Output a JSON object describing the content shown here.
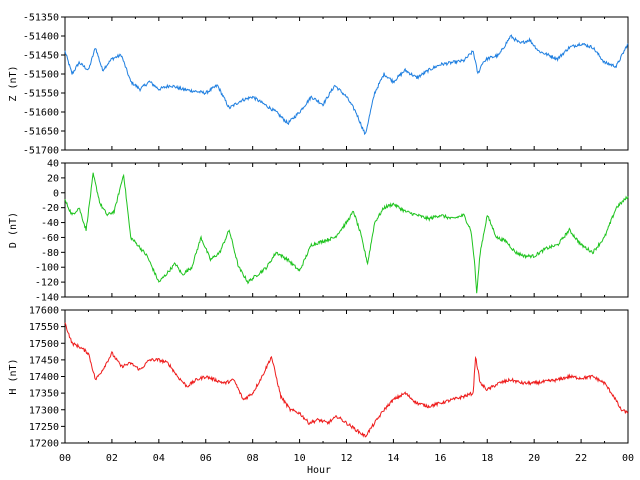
{
  "chart_data": [
    {
      "type": "line",
      "id": "z",
      "ylabel": "Z (nT)",
      "ylim": [
        -51700,
        -51350
      ],
      "yticks": [
        -51700,
        -51650,
        -51600,
        -51550,
        -51500,
        -51450,
        -51400,
        -51350
      ],
      "color": "#1f7fe0",
      "series": [
        {
          "x": [
            0,
            0.3,
            0.6,
            1.0,
            1.3,
            1.6,
            2.0,
            2.4,
            2.8,
            3.2,
            3.6,
            4.0,
            4.5,
            5.0,
            5.5,
            6.0,
            6.5,
            7.0,
            7.5,
            8.0,
            8.5,
            9.0,
            9.5,
            10.0,
            10.5,
            11.0,
            11.5,
            12.0,
            12.4,
            12.8,
            13.2,
            13.6,
            14.0,
            14.5,
            15.0,
            15.5,
            16.0,
            16.5,
            17.0,
            17.4,
            17.6,
            17.8,
            18.0,
            18.5,
            19.0,
            19.4,
            19.8,
            20.2,
            20.6,
            21.0,
            21.5,
            22.0,
            22.5,
            23.0,
            23.5,
            24.0
          ],
          "y": [
            -51440,
            -51500,
            -51470,
            -51490,
            -51430,
            -51490,
            -51460,
            -51450,
            -51520,
            -51540,
            -51520,
            -51540,
            -51530,
            -51540,
            -51545,
            -51550,
            -51530,
            -51590,
            -51570,
            -51560,
            -51580,
            -51600,
            -51630,
            -51600,
            -51560,
            -51580,
            -51530,
            -51560,
            -51600,
            -51660,
            -51550,
            -51500,
            -51520,
            -51490,
            -51510,
            -51490,
            -51475,
            -51470,
            -51465,
            -51440,
            -51500,
            -51470,
            -51460,
            -51450,
            -51400,
            -51420,
            -51410,
            -51440,
            -51450,
            -51460,
            -51430,
            -51420,
            -51430,
            -51470,
            -51480,
            -51420
          ]
        }
      ]
    },
    {
      "type": "line",
      "id": "d",
      "ylabel": "D (nT)",
      "ylim": [
        -140,
        40
      ],
      "yticks": [
        -140,
        -120,
        -100,
        -80,
        -60,
        -40,
        -20,
        0,
        20,
        40
      ],
      "color": "#1ec31e",
      "series": [
        {
          "x": [
            0,
            0.3,
            0.6,
            0.9,
            1.2,
            1.5,
            1.8,
            2.1,
            2.5,
            2.8,
            3.1,
            3.5,
            4.0,
            4.3,
            4.7,
            5.0,
            5.4,
            5.8,
            6.2,
            6.6,
            7.0,
            7.4,
            7.8,
            8.2,
            8.6,
            9.0,
            9.5,
            10.0,
            10.5,
            11.0,
            11.5,
            12.0,
            12.3,
            12.6,
            12.9,
            13.2,
            13.6,
            14.0,
            14.5,
            15.0,
            15.5,
            16.0,
            16.5,
            17.0,
            17.3,
            17.45,
            17.55,
            17.7,
            18.0,
            18.4,
            18.8,
            19.2,
            19.6,
            20.0,
            20.5,
            21.0,
            21.5,
            22.0,
            22.5,
            23.0,
            23.5,
            24.0
          ],
          "y": [
            -10,
            -30,
            -20,
            -50,
            25,
            -15,
            -30,
            -25,
            25,
            -60,
            -70,
            -85,
            -120,
            -110,
            -95,
            -110,
            -100,
            -60,
            -90,
            -80,
            -50,
            -100,
            -120,
            -110,
            -100,
            -80,
            -90,
            -105,
            -70,
            -65,
            -60,
            -40,
            -25,
            -55,
            -95,
            -40,
            -20,
            -15,
            -25,
            -30,
            -35,
            -30,
            -35,
            -30,
            -50,
            -90,
            -135,
            -80,
            -30,
            -60,
            -65,
            -80,
            -85,
            -85,
            -75,
            -70,
            -50,
            -70,
            -80,
            -60,
            -20,
            -5
          ]
        }
      ]
    },
    {
      "type": "line",
      "id": "h",
      "ylabel": "H (nT)",
      "ylim": [
        17200,
        17600
      ],
      "yticks": [
        17200,
        17250,
        17300,
        17350,
        17400,
        17450,
        17500,
        17550,
        17600
      ],
      "color": "#ee1b1b",
      "xlabel": "Hour",
      "xticks": [
        "00",
        "02",
        "04",
        "06",
        "08",
        "10",
        "12",
        "14",
        "16",
        "18",
        "20",
        "22",
        "00"
      ],
      "series": [
        {
          "x": [
            0,
            0.3,
            0.6,
            1.0,
            1.3,
            1.6,
            2.0,
            2.4,
            2.8,
            3.2,
            3.6,
            4.0,
            4.4,
            4.8,
            5.2,
            5.6,
            6.0,
            6.4,
            6.8,
            7.2,
            7.6,
            8.0,
            8.4,
            8.8,
            9.2,
            9.6,
            10.0,
            10.4,
            10.8,
            11.2,
            11.6,
            12.0,
            12.4,
            12.8,
            13.2,
            13.6,
            14.0,
            14.5,
            15.0,
            15.5,
            16.0,
            16.5,
            17.0,
            17.4,
            17.5,
            17.7,
            18.0,
            18.5,
            19.0,
            19.5,
            20.0,
            20.5,
            21.0,
            21.5,
            22.0,
            22.5,
            23.0,
            23.4,
            23.7,
            24.0
          ],
          "y": [
            17560,
            17500,
            17490,
            17470,
            17390,
            17420,
            17470,
            17430,
            17440,
            17420,
            17450,
            17450,
            17440,
            17400,
            17370,
            17390,
            17400,
            17390,
            17380,
            17390,
            17330,
            17350,
            17400,
            17460,
            17340,
            17300,
            17290,
            17260,
            17270,
            17260,
            17280,
            17260,
            17240,
            17220,
            17260,
            17300,
            17330,
            17350,
            17320,
            17310,
            17320,
            17330,
            17340,
            17350,
            17460,
            17380,
            17360,
            17380,
            17390,
            17380,
            17380,
            17385,
            17390,
            17400,
            17395,
            17400,
            17380,
            17340,
            17300,
            17290
          ]
        }
      ]
    }
  ]
}
